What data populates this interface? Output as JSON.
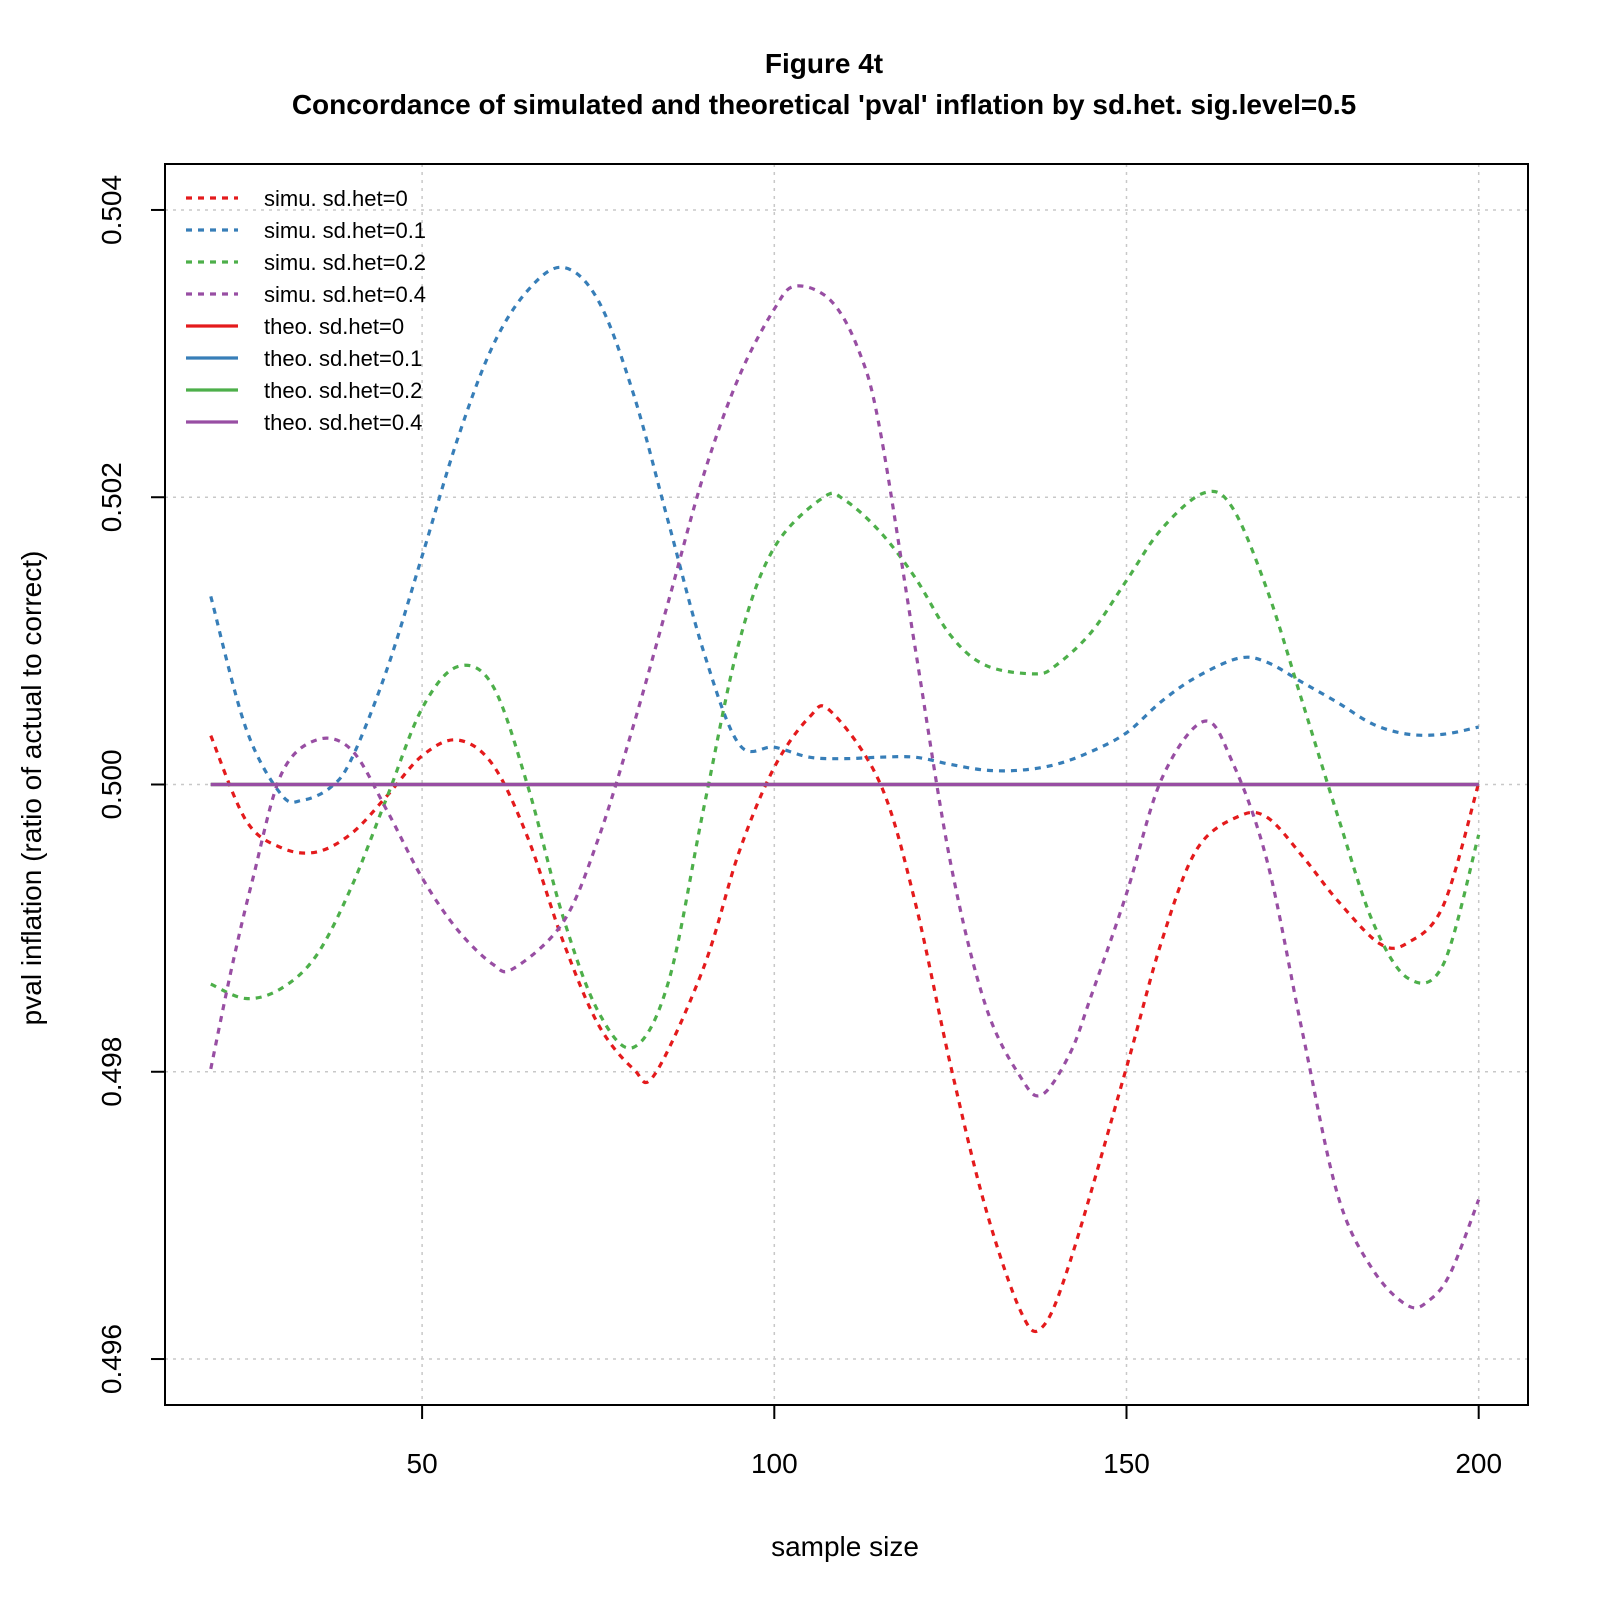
{
  "chart_data": {
    "type": "line",
    "title": "Figure 4t",
    "subtitle": "Concordance of simulated and theoretical 'pval' inflation by sd.het. sig.level=0.5",
    "xlabel": "sample size",
    "ylabel": "pval inflation (ratio of actual to correct)",
    "xlim": [
      13.5,
      207
    ],
    "ylim": [
      0.49568,
      0.50432
    ],
    "x_ticks": [
      50,
      100,
      150,
      200
    ],
    "x_tick_labels": [
      "50",
      "100",
      "150",
      "200"
    ],
    "y_ticks": [
      0.496,
      0.498,
      0.5,
      0.502,
      0.504
    ],
    "y_tick_labels": [
      "0.496",
      "0.498",
      "0.500",
      "0.502",
      "0.504"
    ],
    "grid": true,
    "legend_position": "top-left",
    "series": [
      {
        "name": "simu. sd.het=0",
        "style": "dashed",
        "color": "#E41A1C",
        "x": [
          20,
          25,
          30,
          35,
          40,
          45,
          50,
          55,
          60,
          65,
          70,
          75,
          80,
          83,
          90,
          95,
          100,
          105,
          108,
          115,
          120,
          125,
          130,
          135,
          138,
          142,
          150,
          155,
          160,
          166,
          170,
          175,
          180,
          186,
          190,
          195,
          200
        ],
        "y": [
          0.50034,
          0.49975,
          0.49956,
          0.49953,
          0.49966,
          0.49992,
          0.5002,
          0.50031,
          0.50014,
          0.49963,
          0.49891,
          0.49833,
          0.49802,
          0.49798,
          0.49873,
          0.49953,
          0.50012,
          0.50047,
          0.50051,
          0.50001,
          0.49918,
          0.49805,
          0.49705,
          0.49633,
          0.49622,
          0.49668,
          0.49803,
          0.49891,
          0.49955,
          0.49978,
          0.49977,
          0.4995,
          0.49919,
          0.49889,
          0.4989,
          0.49916,
          0.50001
        ]
      },
      {
        "name": "simu. sd.het=0.1",
        "style": "dashed",
        "color": "#377EB8",
        "x": [
          20,
          25,
          30,
          33,
          37,
          40,
          45,
          50,
          55,
          60,
          65,
          70,
          75,
          80,
          85,
          90,
          95,
          100,
          105,
          110,
          115,
          120,
          125,
          130,
          135,
          140,
          145,
          150,
          155,
          160,
          166,
          170,
          175,
          180,
          185,
          190,
          195,
          200
        ],
        "y": [
          0.50131,
          0.50039,
          0.49993,
          0.49989,
          0.49998,
          0.50018,
          0.5008,
          0.50159,
          0.5024,
          0.50305,
          0.50344,
          0.5036,
          0.50337,
          0.50272,
          0.50182,
          0.50092,
          0.50028,
          0.50026,
          0.50019,
          0.50018,
          0.50019,
          0.50019,
          0.50014,
          0.5001,
          0.5001,
          0.50014,
          0.50023,
          0.50036,
          0.50058,
          0.50075,
          0.50088,
          0.50085,
          0.50071,
          0.50057,
          0.50042,
          0.50035,
          0.50035,
          0.5004
        ]
      },
      {
        "name": "simu. sd.het=0.2",
        "style": "dashed",
        "color": "#4DAF4A",
        "x": [
          20,
          25,
          30,
          35,
          40,
          45,
          50,
          55,
          60,
          65,
          70,
          75,
          80,
          85,
          90,
          95,
          100,
          107,
          110,
          115,
          120,
          125,
          130,
          137,
          140,
          145,
          150,
          155,
          161,
          165,
          170,
          175,
          180,
          185,
          190,
          195,
          200
        ],
        "y": [
          0.49861,
          0.49851,
          0.49858,
          0.49881,
          0.49929,
          0.49991,
          0.50053,
          0.50082,
          0.50069,
          0.49999,
          0.49908,
          0.49842,
          0.49817,
          0.49863,
          0.49984,
          0.50099,
          0.50165,
          0.502,
          0.50198,
          0.50176,
          0.50144,
          0.50104,
          0.50083,
          0.50077,
          0.50083,
          0.50106,
          0.50142,
          0.50178,
          0.50203,
          0.50193,
          0.50135,
          0.50057,
          0.49978,
          0.49904,
          0.49865,
          0.49875,
          0.49965
        ]
      },
      {
        "name": "simu. sd.het=0.4",
        "style": "dashed",
        "color": "#984EA3",
        "x": [
          20,
          23,
          26,
          30,
          35,
          40,
          45,
          50,
          55,
          60,
          63,
          70,
          75,
          80,
          85,
          90,
          95,
          100,
          103,
          108,
          112,
          115,
          120,
          125,
          130,
          135,
          138,
          142,
          145,
          150,
          155,
          161,
          165,
          170,
          175,
          180,
          185,
          190,
          193,
          196,
          200
        ],
        "y": [
          0.49802,
          0.49873,
          0.49935,
          0.50007,
          0.50031,
          0.50024,
          0.49982,
          0.49935,
          0.49899,
          0.49875,
          0.49872,
          0.49904,
          0.49962,
          0.50041,
          0.50128,
          0.50216,
          0.50284,
          0.50331,
          0.50347,
          0.50337,
          0.50302,
          0.50247,
          0.50095,
          0.49946,
          0.49846,
          0.49796,
          0.49784,
          0.49813,
          0.49853,
          0.49924,
          0.50004,
          0.50044,
          0.50016,
          0.49946,
          0.49827,
          0.49714,
          0.49662,
          0.49637,
          0.49641,
          0.4966,
          0.49711
        ]
      },
      {
        "name": "theo. sd.het=0",
        "style": "solid",
        "color": "#E41A1C",
        "x": [
          20,
          200
        ],
        "y": [
          0.5,
          0.5
        ]
      },
      {
        "name": "theo. sd.het=0.1",
        "style": "solid",
        "color": "#377EB8",
        "x": [
          20,
          200
        ],
        "y": [
          0.5,
          0.5
        ]
      },
      {
        "name": "theo. sd.het=0.2",
        "style": "solid",
        "color": "#4DAF4A",
        "x": [
          20,
          200
        ],
        "y": [
          0.5,
          0.5
        ]
      },
      {
        "name": "theo. sd.het=0.4",
        "style": "solid",
        "color": "#984EA3",
        "x": [
          20,
          200
        ],
        "y": [
          0.5,
          0.5
        ]
      }
    ]
  }
}
